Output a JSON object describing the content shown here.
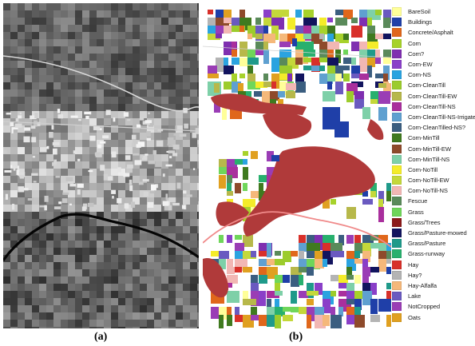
{
  "panels": {
    "a": {
      "caption": "(a)"
    },
    "b": {
      "caption": "(b)"
    }
  },
  "legend": [
    {
      "label": "BareSoil",
      "color": "#ffff99"
    },
    {
      "label": "Buildings",
      "color": "#1f3fa8"
    },
    {
      "label": "Concrete/Asphalt",
      "color": "#e0671b"
    },
    {
      "label": "Corn",
      "color": "#a7d22b"
    },
    {
      "label": "Corn?",
      "color": "#7f2fb0"
    },
    {
      "label": "Corn-EW",
      "color": "#8a3fc8"
    },
    {
      "label": "Corn-NS",
      "color": "#2aa3e0"
    },
    {
      "label": "Corn-CleanTill",
      "color": "#9ccc2c"
    },
    {
      "label": "Corn-CleanTill-EW",
      "color": "#b7b84a"
    },
    {
      "label": "Corn-CleanTill-NS",
      "color": "#a92f9d"
    },
    {
      "label": "Corn-CleanTill-NS-Irrigated",
      "color": "#5fa0d0"
    },
    {
      "label": "Corn-CleanTilled-NS?",
      "color": "#3b5e80"
    },
    {
      "label": "Corn-MinTill",
      "color": "#3f7a1f"
    },
    {
      "label": "Corn-MinTill-EW",
      "color": "#8e4a2b"
    },
    {
      "label": "Corn-MinTill-NS",
      "color": "#7ed0a8"
    },
    {
      "label": "Corn-NoTill",
      "color": "#f4ec2a"
    },
    {
      "label": "Corn-NoTill-EW",
      "color": "#c4d83a"
    },
    {
      "label": "Corn-NoTill-NS",
      "color": "#f2b7b4"
    },
    {
      "label": "Fescue",
      "color": "#5a8a5a"
    },
    {
      "label": "Grass",
      "color": "#6fd65a"
    },
    {
      "label": "Grass/Trees",
      "color": "#8b1a1a"
    },
    {
      "label": "Grass/Pasture-mowed",
      "color": "#12145e"
    },
    {
      "label": "Grass/Pasture",
      "color": "#1f9a8a"
    },
    {
      "label": "Grass-runway",
      "color": "#28b06e"
    },
    {
      "label": "Hay",
      "color": "#d8302a"
    },
    {
      "label": "Hay?",
      "color": "#b4b4b4"
    },
    {
      "label": "Hay-Alfalfa",
      "color": "#f5b87a"
    },
    {
      "label": "Lake",
      "color": "#6a5ac0"
    },
    {
      "label": "NotCropped",
      "color": "#9a3db5"
    },
    {
      "label": "Oats",
      "color": "#e0a020"
    }
  ]
}
